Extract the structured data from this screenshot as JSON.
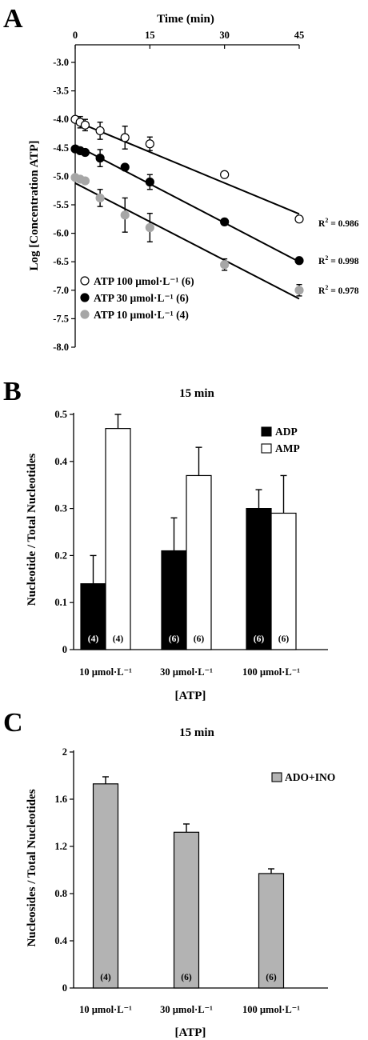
{
  "chart_data": [
    {
      "panel": "A",
      "type": "scatter",
      "xlabel": "Time (min)",
      "ylabel": "Log [Concentration ATP]",
      "xlim": [
        0,
        45
      ],
      "ylim": [
        -8.0,
        -3.0
      ],
      "xticks": [
        "0",
        "15",
        "30",
        "45"
      ],
      "xtick_values": [
        0,
        15,
        30,
        45
      ],
      "yticks": [
        "-3.0",
        "-3.5",
        "-4.0",
        "-4.5",
        "-5.0",
        "-5.5",
        "-6.0",
        "-6.5",
        "-7.0",
        "-7.5",
        "-8.0"
      ],
      "ytick_values": [
        -3.0,
        -3.5,
        -4.0,
        -4.5,
        -5.0,
        -5.5,
        -6.0,
        -6.5,
        -7.0,
        -7.5,
        -8.0
      ],
      "x_axis_position": "top",
      "legend_position": "bottom-left",
      "series": [
        {
          "name": "ATP 100 µmol·L⁻¹ (6)",
          "marker": "open",
          "color": "#ffffff",
          "x": [
            0,
            1,
            2,
            5,
            10,
            15,
            30,
            45
          ],
          "y": [
            -4.0,
            -4.05,
            -4.1,
            -4.2,
            -4.32,
            -4.43,
            -4.97,
            -5.75
          ],
          "err": [
            0,
            0.1,
            0.1,
            0.15,
            0.2,
            0.12,
            0,
            0
          ],
          "fit": [
            -4.03,
            -5.66
          ],
          "r2": "R² = 0.986"
        },
        {
          "name": "ATP 30 µmol·L⁻¹ (6)",
          "marker": "filled",
          "color": "#000000",
          "x": [
            0,
            1,
            2,
            5,
            10,
            15,
            30,
            45
          ],
          "y": [
            -4.52,
            -4.55,
            -4.58,
            -4.68,
            -4.84,
            -5.1,
            -5.8,
            -6.48
          ],
          "err": [
            0,
            0,
            0,
            0.15,
            0,
            0.13,
            0,
            0
          ],
          "fit": [
            -4.45,
            -6.5
          ],
          "r2": "R² = 0.998"
        },
        {
          "name": "ATP 10 µmol·L⁻¹ (4)",
          "marker": "gray",
          "color": "#a6a6a6",
          "x": [
            0,
            1,
            2,
            5,
            10,
            15,
            30,
            45
          ],
          "y": [
            -5.02,
            -5.05,
            -5.08,
            -5.38,
            -5.68,
            -5.9,
            -6.55,
            -7.0
          ],
          "err": [
            0,
            0,
            0,
            0.15,
            0.3,
            0.25,
            0.1,
            0.1
          ],
          "fit": [
            -5.12,
            -7.15
          ],
          "r2": "R² = 0.978"
        }
      ]
    },
    {
      "panel": "B",
      "type": "bar",
      "title": "15 min",
      "xlabel": "[ATP]",
      "ylabel": "Nucleotide / Total Nucleotides",
      "ylim": [
        0,
        0.5
      ],
      "ytick_values": [
        0,
        0.1,
        0.2,
        0.3,
        0.4,
        0.5
      ],
      "yticks": [
        "0",
        "0.1",
        "0.2",
        "0.3",
        "0.4",
        "0.5"
      ],
      "categories": [
        "10 µmol·L⁻¹",
        "30 µmol·L⁻¹",
        "100 µmol·L⁻¹"
      ],
      "legend_position": "top-right",
      "series": [
        {
          "name": "ADP",
          "color": "#000000",
          "values": [
            0.14,
            0.21,
            0.3
          ],
          "err": [
            0.06,
            0.07,
            0.04
          ],
          "n": [
            "(4)",
            "(6)",
            "(6)"
          ]
        },
        {
          "name": "AMP",
          "color": "#ffffff",
          "values": [
            0.47,
            0.37,
            0.29
          ],
          "err": [
            0.03,
            0.06,
            0.08
          ],
          "n": [
            "(4)",
            "(6)",
            "(6)"
          ]
        }
      ]
    },
    {
      "panel": "C",
      "type": "bar",
      "title": "15 min",
      "xlabel": "[ATP]",
      "ylabel": "Nucleosides / Total Nucleotides",
      "ylim": [
        0,
        2
      ],
      "ytick_values": [
        0,
        0.4,
        0.8,
        1.2,
        1.6,
        2
      ],
      "yticks": [
        "0",
        "0.4",
        "0.8",
        "1.2",
        "1.6",
        "2"
      ],
      "categories": [
        "10 µmol·L⁻¹",
        "30 µmol·L⁻¹",
        "100 µmol·L⁻¹"
      ],
      "legend_position": "top-right",
      "series": [
        {
          "name": "ADO+INO",
          "color": "#b3b3b3",
          "values": [
            1.73,
            1.32,
            0.97
          ],
          "err": [
            0.06,
            0.07,
            0.04
          ],
          "n": [
            "(4)",
            "(6)",
            "(6)"
          ]
        }
      ]
    }
  ],
  "panels": {
    "a": "A",
    "b": "B",
    "c": "C"
  }
}
